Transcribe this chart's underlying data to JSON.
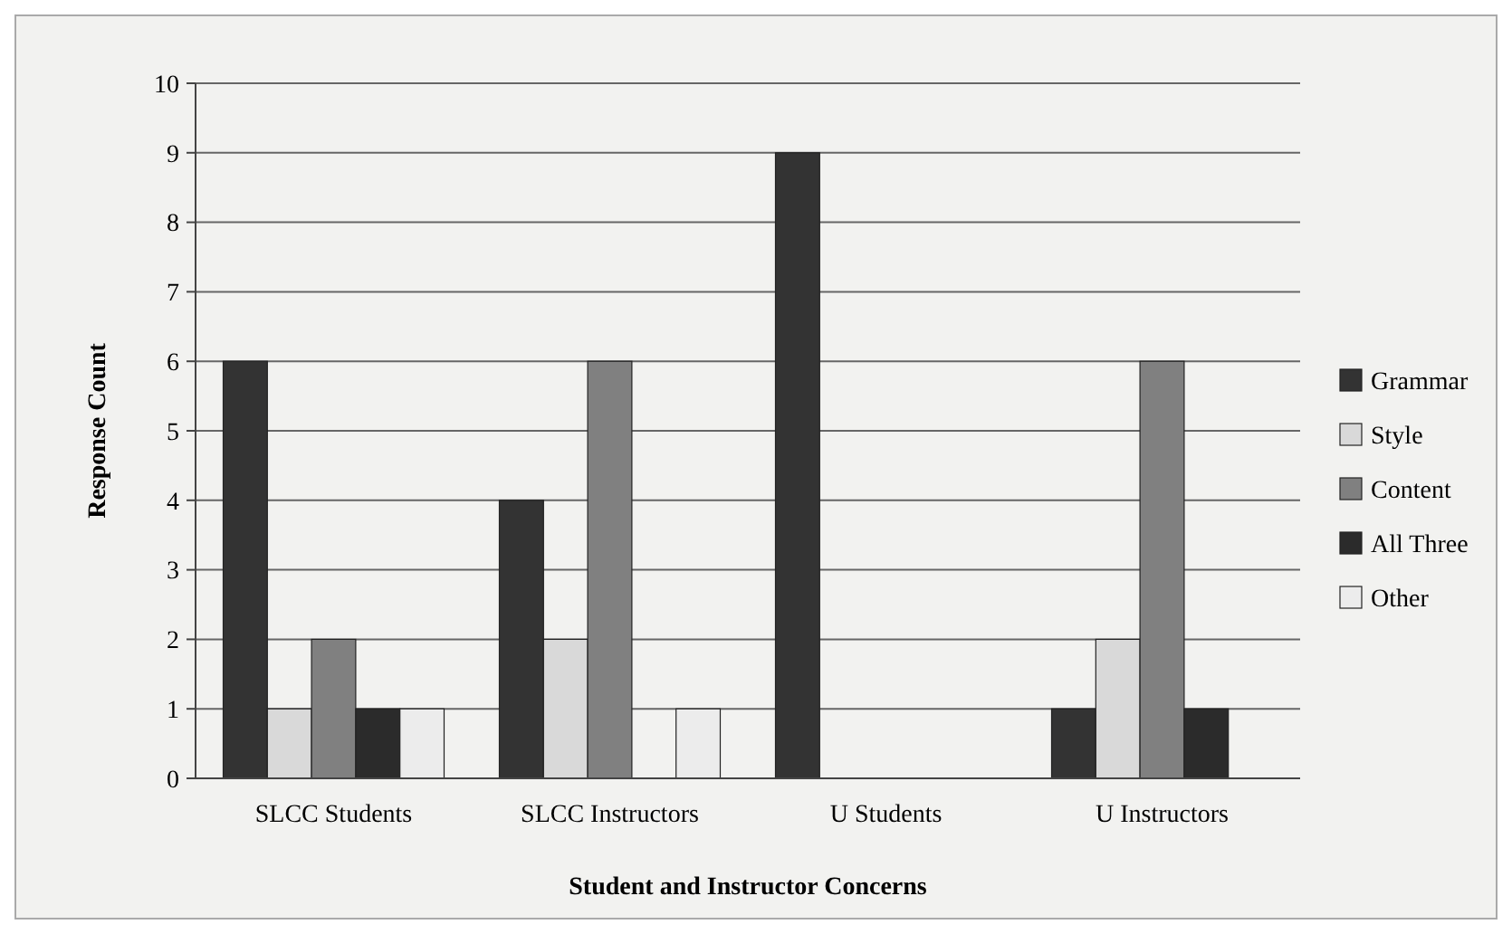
{
  "chart_data": {
    "type": "bar",
    "xlabel": "Student and Instructor Concerns",
    "ylabel": "Response Count",
    "categories": [
      "SLCC Students",
      "SLCC Instructors",
      "U Students",
      "U Instructors"
    ],
    "series": [
      {
        "name": "Grammar",
        "color": "#333333",
        "values": [
          6,
          4,
          9,
          1
        ]
      },
      {
        "name": "Style",
        "color": "#d9d9d9",
        "values": [
          1,
          2,
          0,
          2
        ]
      },
      {
        "name": "Content",
        "color": "#808080",
        "values": [
          2,
          6,
          0,
          6
        ]
      },
      {
        "name": "All Three",
        "color": "#2b2b2b",
        "values": [
          1,
          0,
          0,
          1
        ]
      },
      {
        "name": "Other",
        "color": "#ececec",
        "values": [
          1,
          1,
          0,
          0
        ]
      }
    ],
    "ylim": [
      0,
      10
    ],
    "yticks": [
      0,
      1,
      2,
      3,
      4,
      5,
      6,
      7,
      8,
      9,
      10
    ],
    "grid": "y",
    "legend": "right"
  }
}
